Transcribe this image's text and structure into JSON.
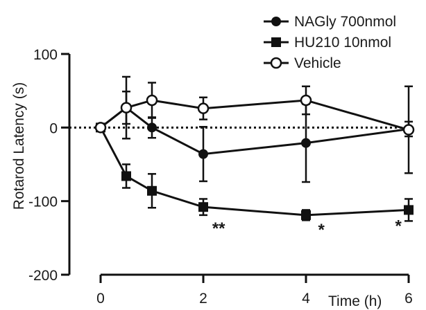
{
  "chart_data": {
    "type": "line",
    "title": "",
    "xlabel": "Time (h)",
    "ylabel": "Rotarod Latency (s)",
    "xlim": [
      0,
      6
    ],
    "ylim": [
      -200,
      100
    ],
    "xticks": [
      0,
      2,
      4,
      6
    ],
    "yticks": [
      -200,
      -100,
      0,
      100
    ],
    "legend_position": "top-right",
    "reference_line": {
      "y": 0,
      "style": "dotted"
    },
    "series": [
      {
        "name": "NAGly 700nmol",
        "marker": "filled-circle",
        "x": [
          0,
          0.5,
          1,
          2,
          4,
          6
        ],
        "y": [
          0,
          27,
          0,
          -36,
          -21,
          -2
        ],
        "err": [
          0,
          22,
          14,
          37,
          53,
          10
        ]
      },
      {
        "name": "HU210 10nmol",
        "marker": "filled-square",
        "x": [
          0,
          0.5,
          1,
          2,
          4,
          6
        ],
        "y": [
          0,
          -66,
          -86,
          -108,
          -119,
          -112
        ],
        "err": [
          0,
          16,
          23,
          11,
          7,
          15
        ]
      },
      {
        "name": "Vehicle",
        "marker": "open-circle",
        "x": [
          0,
          0.5,
          1,
          2,
          4,
          6
        ],
        "y": [
          0,
          27,
          37,
          26,
          37,
          -3
        ],
        "err": [
          0,
          42,
          24,
          15,
          19,
          59
        ]
      }
    ],
    "annotations": [
      {
        "text": "**",
        "x": 2.3,
        "y": -135
      },
      {
        "text": "*",
        "x": 4.3,
        "y": -137
      },
      {
        "text": "*",
        "x": 5.8,
        "y": -132
      }
    ]
  }
}
